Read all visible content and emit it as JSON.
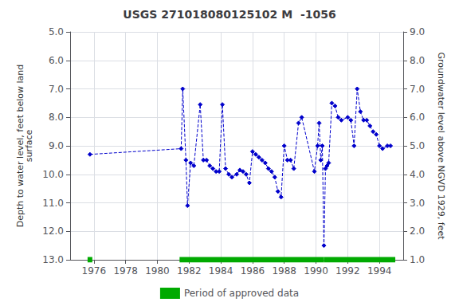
{
  "chart_data": {
    "type": "line",
    "title": "USGS 271018080125102 M  -1056",
    "ylabel": "Depth to water level, feet below land\nsurface",
    "y2label": "Groundwater level above NGVD 1929, feet",
    "x": [
      1975.75,
      1981.5,
      1981.6,
      1981.8,
      1981.9,
      1982.1,
      1982.3,
      1982.7,
      1982.9,
      1983.1,
      1983.3,
      1983.5,
      1983.7,
      1983.9,
      1984.1,
      1984.3,
      1984.5,
      1984.7,
      1985.0,
      1985.2,
      1985.4,
      1985.6,
      1985.8,
      1986.0,
      1986.2,
      1986.4,
      1986.6,
      1986.8,
      1987.0,
      1987.2,
      1987.4,
      1987.6,
      1987.8,
      1988.0,
      1988.2,
      1988.4,
      1988.6,
      1988.9,
      1989.1,
      1989.9,
      1990.1,
      1990.2,
      1990.3,
      1990.4,
      1990.5,
      1990.6,
      1990.7,
      1990.8,
      1991.0,
      1991.2,
      1991.4,
      1991.6,
      1992.0,
      1992.2,
      1992.4,
      1992.6,
      1992.8,
      1993.0,
      1993.2,
      1993.4,
      1993.6,
      1993.8,
      1994.0,
      1994.2,
      1994.5,
      1994.7
    ],
    "series": [
      {
        "values": [
          9.3,
          9.1,
          7.0,
          9.5,
          11.1,
          9.6,
          9.7,
          7.55,
          9.5,
          9.5,
          9.7,
          9.8,
          9.9,
          9.9,
          7.55,
          9.8,
          10.0,
          10.1,
          10.0,
          9.85,
          9.9,
          10.0,
          10.3,
          9.2,
          9.3,
          9.4,
          9.5,
          9.6,
          9.8,
          9.9,
          10.1,
          10.6,
          10.8,
          9.0,
          9.5,
          9.5,
          9.8,
          8.2,
          8.0,
          9.9,
          9.0,
          8.2,
          9.5,
          9.0,
          12.5,
          9.8,
          9.7,
          9.6,
          7.5,
          7.6,
          8.0,
          8.1,
          8.0,
          8.1,
          9.0,
          7.0,
          7.8,
          8.1,
          8.1,
          8.3,
          8.5,
          8.6,
          9.0,
          9.1,
          9.0,
          9.0
        ],
        "color": "#0000cc",
        "marker": "diamond",
        "line_style": "dashed"
      },
      {
        "name": "Period of approved data",
        "type": "span",
        "color": "#00aa00",
        "periods": [
          [
            1975.6,
            1975.9
          ],
          [
            1981.4,
            1990.5
          ],
          [
            1990.5,
            1995.0
          ]
        ]
      }
    ],
    "xlim": [
      1974.5,
      1995.5
    ],
    "xticks": [
      1976,
      1978,
      1980,
      1982,
      1984,
      1986,
      1988,
      1990,
      1992,
      1994
    ],
    "ylim": [
      13.0,
      5.0
    ],
    "yticks": [
      {
        "value": 5.0,
        "label": "5.0"
      },
      {
        "value": 6.0,
        "label": "6.0"
      },
      {
        "value": 7.0,
        "label": "7.0"
      },
      {
        "value": 8.0,
        "label": "8.0"
      },
      {
        "value": 9.0,
        "label": "9.0"
      },
      {
        "value": 10.0,
        "label": "10.0"
      },
      {
        "value": 11.0,
        "label": "11.0"
      },
      {
        "value": 12.0,
        "label": "12.0"
      },
      {
        "value": 13.0,
        "label": "13.0"
      }
    ],
    "y2lim": [
      1.0,
      9.0
    ],
    "y2ticks": [
      {
        "value": 9.0,
        "label": "9.0"
      },
      {
        "value": 8.0,
        "label": "8.0"
      },
      {
        "value": 7.0,
        "label": "7.0"
      },
      {
        "value": 6.0,
        "label": "6.0"
      },
      {
        "value": 5.0,
        "label": "5.0"
      },
      {
        "value": 4.0,
        "label": "4.0"
      },
      {
        "value": 3.0,
        "label": "3.0"
      },
      {
        "value": 2.0,
        "label": "2.0"
      },
      {
        "value": 1.0,
        "label": "1.0"
      }
    ],
    "grid": true,
    "legend": "bottom"
  }
}
